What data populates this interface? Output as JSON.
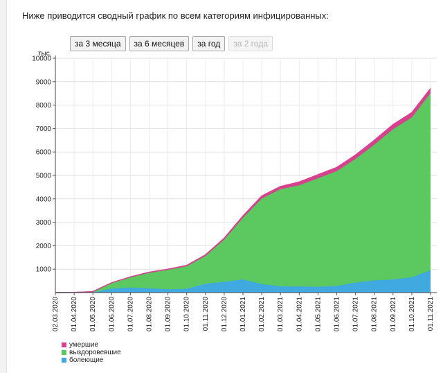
{
  "intro_text": "Ниже приводится сводный график по всем категориям инфицированных:",
  "range_buttons": [
    {
      "label": "за 3 месяца",
      "enabled": true
    },
    {
      "label": "за 6 месяцев",
      "enabled": true
    },
    {
      "label": "за год",
      "enabled": true
    },
    {
      "label": "за 2 года",
      "enabled": false
    }
  ],
  "chart_data": {
    "type": "area",
    "stacked": true,
    "unit_label": "тыс.",
    "ylim": [
      0,
      10000
    ],
    "yticks": [
      1000,
      2000,
      3000,
      4000,
      5000,
      6000,
      7000,
      8000,
      9000,
      10000
    ],
    "grid": true,
    "legend_position": "bottom-left",
    "x": [
      "02.03.2020",
      "01.04.2020",
      "01.05.2020",
      "01.06.2020",
      "01.07.2020",
      "01.08.2020",
      "01.09.2020",
      "01.10.2020",
      "01.11.2020",
      "01.12.2020",
      "01.01.2021",
      "01.02.2021",
      "01.03.2021",
      "01.04.2021",
      "01.05.2021",
      "01.06.2021",
      "01.07.2021",
      "01.08.2021",
      "01.09.2021",
      "01.10.2021",
      "01.11.2021"
    ],
    "series": [
      {
        "name": "болеющие",
        "color": "#3fa9e0",
        "values": [
          0,
          0,
          10,
          170,
          220,
          180,
          140,
          160,
          380,
          460,
          560,
          360,
          270,
          260,
          250,
          280,
          430,
          520,
          560,
          650,
          950
        ]
      },
      {
        "name": "выздоровевшие",
        "color": "#5cc860",
        "values": [
          0,
          10,
          30,
          240,
          430,
          660,
          830,
          960,
          1180,
          1800,
          2630,
          3650,
          4140,
          4320,
          4630,
          4900,
          5270,
          5790,
          6410,
          6820,
          7560
        ]
      },
      {
        "name": "умершие",
        "color": "#d6428e",
        "values": [
          0,
          0,
          0,
          10,
          20,
          30,
          30,
          40,
          50,
          60,
          80,
          110,
          120,
          140,
          150,
          160,
          170,
          190,
          200,
          210,
          200
        ]
      }
    ],
    "legend_order": [
      "умершие",
      "выздоровевшие",
      "болеющие"
    ]
  }
}
